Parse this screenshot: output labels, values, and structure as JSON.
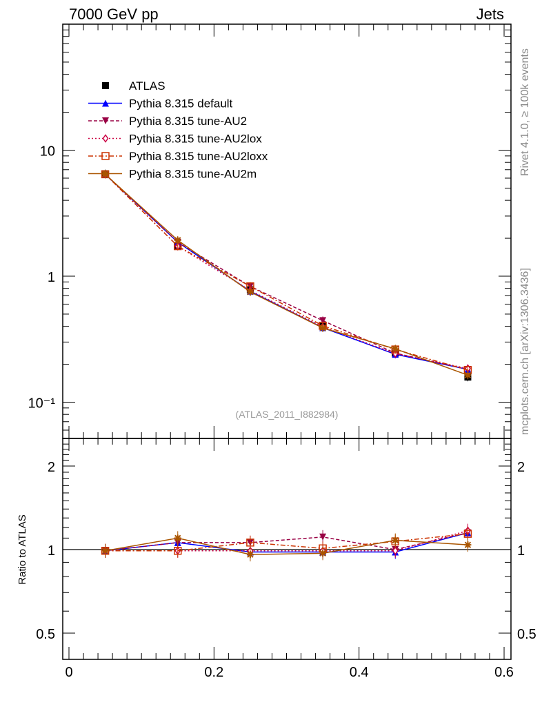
{
  "header": {
    "left": "7000 GeV pp",
    "right": "Jets"
  },
  "side": {
    "rivet": "Rivet 4.1.0, ≥ 100k events",
    "mcplots": "mcplots.cern.ch [arXiv:1306.3436]"
  },
  "watermark": "(ATLAS_2011_I882984)",
  "chart_data": [
    {
      "type": "line",
      "yscale": "log",
      "xlim": [
        0,
        0.6
      ],
      "ylim": [
        0.053,
        100
      ],
      "ytick_labels": [
        "10",
        "1",
        "10⁻¹"
      ],
      "yticks": [
        10,
        1,
        0.1
      ],
      "x": [
        0.05,
        0.15,
        0.25,
        0.35,
        0.45,
        0.55
      ],
      "series": [
        {
          "name": "ATLAS",
          "color": "#000000",
          "marker": "square",
          "values": [
            6.5,
            1.75,
            0.78,
            0.4,
            0.245,
            0.158
          ]
        },
        {
          "name": "Pythia 8.315 default",
          "color": "#0000ff",
          "marker": "triangle-up",
          "dash": "",
          "values": [
            6.44,
            1.86,
            0.76,
            0.39,
            0.24,
            0.182
          ]
        },
        {
          "name": "Pythia 8.315 tune-AU2",
          "color": "#990044",
          "marker": "triangle-down",
          "dash": "5,3",
          "values": [
            6.44,
            1.86,
            0.83,
            0.444,
            0.245,
            0.182
          ]
        },
        {
          "name": "Pythia 8.315 tune-AU2lox",
          "color": "#cc0044",
          "marker": "diamond",
          "dash": "2,3",
          "values": [
            6.44,
            1.73,
            0.77,
            0.396,
            0.243,
            0.185
          ]
        },
        {
          "name": "Pythia 8.315 tune-AU2loxx",
          "color": "#cc3300",
          "marker": "open-square",
          "dash": "7,3,2,3",
          "values": [
            6.44,
            1.73,
            0.83,
            0.404,
            0.262,
            0.18
          ]
        },
        {
          "name": "Pythia 8.315 tune-AU2m",
          "color": "#aa5500",
          "marker": "star",
          "dash": "",
          "values": [
            6.44,
            1.93,
            0.75,
            0.388,
            0.265,
            0.164
          ]
        }
      ]
    },
    {
      "type": "line",
      "yscale": "log",
      "ylabel": "Ratio to ATLAS",
      "xlim": [
        0,
        0.6
      ],
      "ylim": [
        0.4,
        2.5
      ],
      "yticks": [
        0.5,
        1,
        2
      ],
      "ytick_labels": [
        "0.5",
        "1",
        "2"
      ],
      "xticks": [
        0,
        0.2,
        0.4,
        0.6
      ],
      "xtick_labels": [
        "0",
        "0.2",
        "0.4",
        "0.6"
      ],
      "x": [
        0.05,
        0.15,
        0.25,
        0.35,
        0.45,
        0.55
      ],
      "series": [
        {
          "name": "Pythia 8.315 default",
          "values": [
            0.99,
            1.06,
            0.98,
            0.98,
            0.98,
            1.15
          ]
        },
        {
          "name": "Pythia 8.315 tune-AU2",
          "values": [
            0.99,
            1.06,
            1.06,
            1.11,
            1.0,
            1.15
          ]
        },
        {
          "name": "Pythia 8.315 tune-AU2lox",
          "values": [
            0.99,
            0.99,
            0.99,
            0.99,
            0.99,
            1.17
          ]
        },
        {
          "name": "Pythia 8.315 tune-AU2loxx",
          "values": [
            0.99,
            0.99,
            1.06,
            1.01,
            1.07,
            1.14
          ]
        },
        {
          "name": "Pythia 8.315 tune-AU2m",
          "values": [
            0.99,
            1.1,
            0.96,
            0.97,
            1.08,
            1.04
          ]
        }
      ]
    }
  ]
}
